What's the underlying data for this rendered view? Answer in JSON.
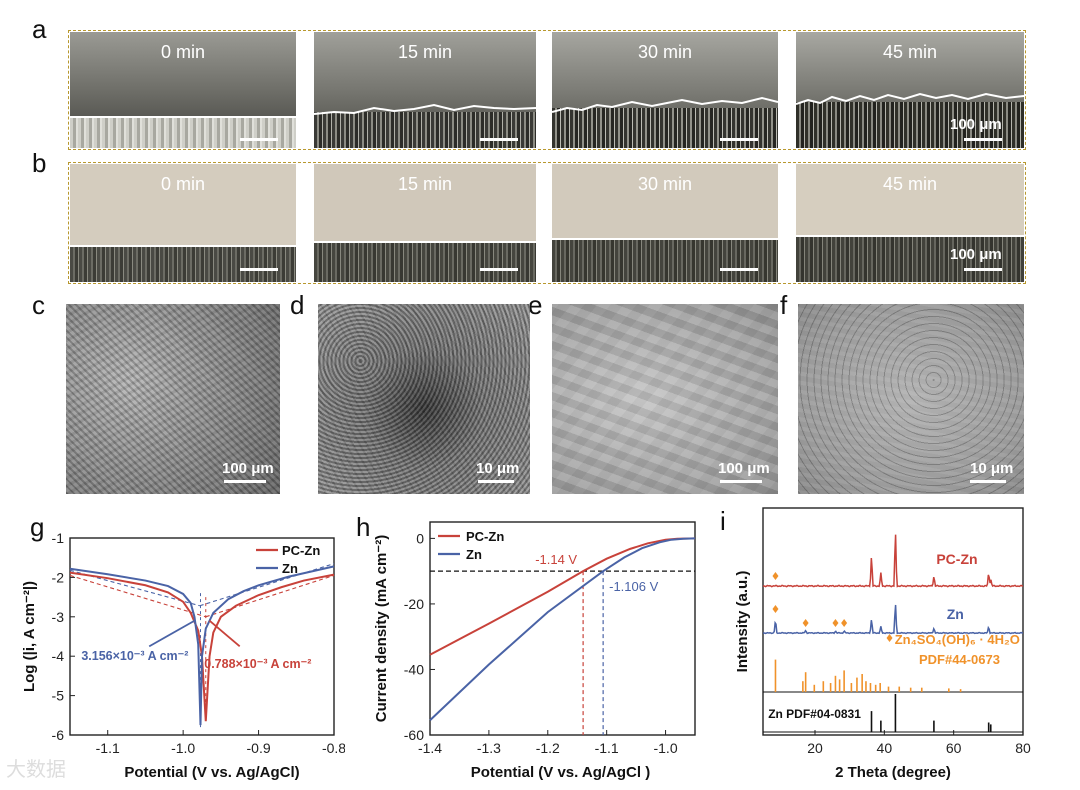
{
  "panel_labels": {
    "a": "a",
    "b": "b",
    "c": "c",
    "d": "d",
    "e": "e",
    "f": "f",
    "g": "g",
    "h": "h",
    "i": "i"
  },
  "row_a": {
    "times": [
      "0 min",
      "15 min",
      "30 min",
      "45 min"
    ],
    "scale_label": "100 μm"
  },
  "row_b": {
    "times": [
      "0 min",
      "15 min",
      "30 min",
      "45 min"
    ],
    "scale_label": "100 μm"
  },
  "sem": {
    "c": "100 μm",
    "d": "10 μm",
    "e": "100 μm",
    "f": "10 μm"
  },
  "colors": {
    "pc_zn": "#c8423a",
    "zn": "#4a63a6",
    "reference": "#f0922a",
    "zn_pdf": "#111111",
    "frame": "#b8982e"
  },
  "watermark": "大数据",
  "chart_data": [
    {
      "panel": "g",
      "type": "line",
      "xlabel": "Potential (V vs. Ag/AgCl)",
      "ylabel": "Log (|i, A cm⁻²|)",
      "xlim": [
        -1.15,
        -0.8
      ],
      "ylim": [
        -6,
        -1
      ],
      "xticks": [
        -1.1,
        -1.0,
        -0.9,
        -0.8
      ],
      "xtick_labels": [
        "-1.1",
        "-1.0",
        "-0.9",
        "-0.8"
      ],
      "yticks": [
        -6,
        -5,
        -4,
        -3,
        -2,
        -1
      ],
      "ytick_labels": [
        "-6",
        "-5",
        "-4",
        "-3",
        "-2",
        "-1"
      ],
      "legend": [
        "PC-Zn",
        "Zn"
      ],
      "series": [
        {
          "name": "PC-Zn",
          "x": [
            -1.15,
            -1.1,
            -1.05,
            -1.02,
            -1.0,
            -0.99,
            -0.98,
            -0.975,
            -0.97,
            -0.965,
            -0.96,
            -0.95,
            -0.93,
            -0.9,
            -0.87,
            -0.84,
            -0.8
          ],
          "y": [
            -1.88,
            -2.02,
            -2.2,
            -2.38,
            -2.62,
            -2.9,
            -3.35,
            -4.0,
            -5.65,
            -4.0,
            -3.4,
            -3.0,
            -2.72,
            -2.45,
            -2.25,
            -2.08,
            -1.93
          ]
        },
        {
          "name": "Zn",
          "x": [
            -1.15,
            -1.1,
            -1.05,
            -1.02,
            -1.0,
            -0.99,
            -0.985,
            -0.98,
            -0.977,
            -0.975,
            -0.97,
            -0.96,
            -0.94,
            -0.92,
            -0.9,
            -0.86,
            -0.8
          ],
          "y": [
            -1.78,
            -1.92,
            -2.08,
            -2.22,
            -2.42,
            -2.65,
            -3.0,
            -3.7,
            -5.75,
            -4.0,
            -3.3,
            -2.9,
            -2.55,
            -2.35,
            -2.2,
            -1.98,
            -1.72
          ]
        }
      ],
      "annotations": [
        {
          "text": "3.156×10⁻³ A cm⁻²",
          "color": "#4a63a6"
        },
        {
          "text": "0.788×10⁻³ A cm⁻²",
          "color": "#c8423a"
        }
      ]
    },
    {
      "panel": "h",
      "type": "line",
      "xlabel": "Potential (V vs. Ag/AgCl )",
      "ylabel": "Current density (mA cm⁻²)",
      "xlim": [
        -1.4,
        -0.95
      ],
      "ylim": [
        -60,
        5
      ],
      "xticks": [
        -1.4,
        -1.3,
        -1.2,
        -1.1,
        -1.0
      ],
      "xtick_labels": [
        "-1.4",
        "-1.3",
        "-1.2",
        "-1.1",
        "-1.0"
      ],
      "yticks": [
        -60,
        -40,
        -20,
        0
      ],
      "ytick_labels": [
        "-60",
        "-40",
        "-20",
        "0"
      ],
      "legend": [
        "PC-Zn",
        "Zn"
      ],
      "series": [
        {
          "name": "PC-Zn",
          "x": [
            -1.4,
            -1.3,
            -1.2,
            -1.14,
            -1.1,
            -1.06,
            -1.03,
            -1.0,
            -0.98,
            -0.95
          ],
          "y": [
            -35.5,
            -26,
            -16.3,
            -10,
            -6.2,
            -3.2,
            -1.5,
            -0.4,
            -0.1,
            0
          ]
        },
        {
          "name": "Zn",
          "x": [
            -1.4,
            -1.3,
            -1.2,
            -1.106,
            -1.07,
            -1.04,
            -1.01,
            -0.99,
            -0.97,
            -0.95
          ],
          "y": [
            -55.5,
            -38.5,
            -22.5,
            -10,
            -5.8,
            -3.0,
            -1.2,
            -0.4,
            -0.1,
            0
          ]
        }
      ],
      "reference_line_y": -10,
      "markers": [
        {
          "x": -1.14,
          "label": "-1.14 V",
          "color": "#c8423a"
        },
        {
          "x": -1.106,
          "label": "-1.106 V",
          "color": "#4a63a6"
        }
      ]
    },
    {
      "panel": "i",
      "type": "line",
      "xlabel": "2 Theta (degree)",
      "ylabel": "Intensity (a.u.)",
      "xlim": [
        5,
        80
      ],
      "xticks": [
        20,
        40,
        60,
        80
      ],
      "xtick_labels": [
        "20",
        "40",
        "60",
        "80"
      ],
      "series": [
        {
          "name": "PC-Zn",
          "peaks_x": [
            36.3,
            39.0,
            43.2,
            54.3,
            70.1,
            70.7
          ],
          "peaks_h": [
            0.55,
            0.22,
            1.0,
            0.18,
            0.25,
            0.12
          ]
        },
        {
          "name": "Zn",
          "peaks_x": [
            8.6,
            17.3,
            25.9,
            28.4,
            36.3,
            39.0,
            43.2,
            54.3,
            70.1
          ],
          "peaks_h": [
            0.32,
            0.06,
            0.05,
            0.05,
            0.35,
            0.15,
            0.75,
            0.12,
            0.16
          ]
        },
        {
          "name": "Zn4SO4(OH)6·4H2O PDF#44-0673",
          "peaks_x": [
            8.6,
            16.5,
            17.3,
            19.8,
            22.4,
            24.5,
            25.9,
            27.1,
            28.4,
            30.5,
            32.1,
            33.6,
            34.7,
            36.0,
            37.5,
            38.8,
            41.2,
            44.3,
            47.6,
            50.8,
            58.6,
            62.0
          ],
          "peaks_h": [
            0.9,
            0.3,
            0.55,
            0.2,
            0.3,
            0.25,
            0.45,
            0.35,
            0.6,
            0.25,
            0.4,
            0.5,
            0.3,
            0.25,
            0.2,
            0.25,
            0.15,
            0.15,
            0.12,
            0.12,
            0.1,
            0.08
          ]
        },
        {
          "name": "Zn PDF#04-0831",
          "peaks_x": [
            36.3,
            39.0,
            43.2,
            54.3,
            70.1,
            70.7
          ],
          "peaks_h": [
            0.55,
            0.3,
            1.0,
            0.3,
            0.25,
            0.2
          ]
        }
      ],
      "labels": {
        "pc_zn": "PC-Zn",
        "zn": "Zn",
        "ref_line1": "Zn₄SO₄(OH)₆ · 4H₂O",
        "ref_line2": "PDF#44-0673",
        "zn_pdf": "Zn PDF#04-0831"
      }
    }
  ]
}
